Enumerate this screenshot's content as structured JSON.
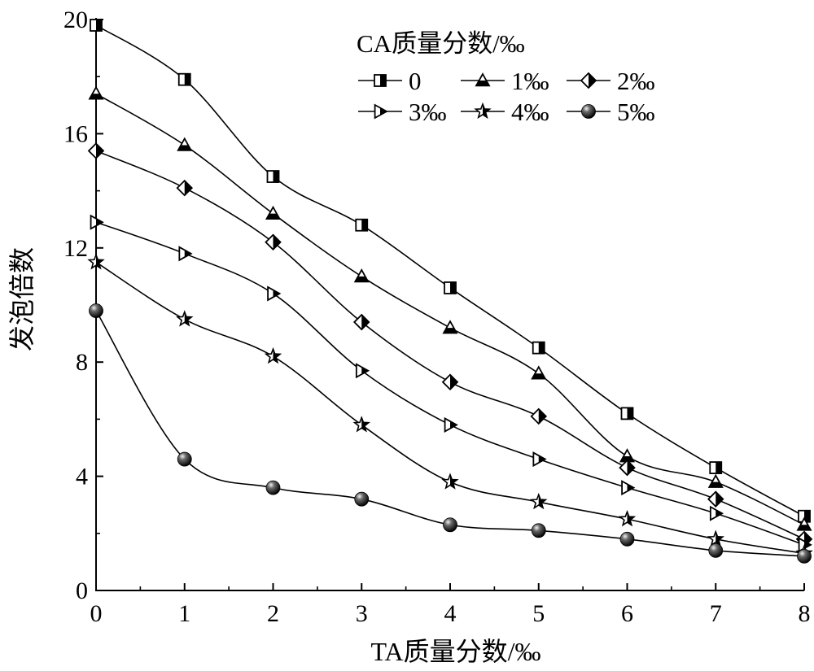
{
  "chart_data": {
    "type": "line",
    "xlabel": "TA质量分数/‰",
    "ylabel": "发泡倍数",
    "x": [
      0,
      1,
      2,
      3,
      4,
      5,
      6,
      7,
      8
    ],
    "xlim": [
      0,
      8
    ],
    "ylim": [
      0,
      20
    ],
    "xticks": [
      "0",
      "1",
      "2",
      "3",
      "4",
      "5",
      "6",
      "7",
      "8"
    ],
    "yticks": [
      "0",
      "4",
      "8",
      "12",
      "16",
      "20"
    ],
    "grid": false,
    "legend": {
      "title": "CA质量分数/‰",
      "placement": "top-right"
    },
    "series": [
      {
        "name": "0",
        "marker": "half-square",
        "values": [
          19.8,
          17.9,
          14.5,
          12.8,
          10.6,
          8.5,
          6.2,
          4.3,
          2.6
        ]
      },
      {
        "name": "1‰",
        "marker": "half-triangle",
        "values": [
          17.4,
          15.6,
          13.2,
          11.0,
          9.2,
          7.6,
          4.7,
          3.8,
          2.3
        ]
      },
      {
        "name": "2‰",
        "marker": "half-diamond",
        "values": [
          15.4,
          14.1,
          12.2,
          9.4,
          7.3,
          6.1,
          4.3,
          3.2,
          1.8
        ]
      },
      {
        "name": "3‰",
        "marker": "half-right-triangle",
        "values": [
          12.9,
          11.8,
          10.4,
          7.7,
          5.8,
          4.6,
          3.6,
          2.7,
          1.6
        ]
      },
      {
        "name": "4‰",
        "marker": "star",
        "values": [
          11.5,
          9.5,
          8.2,
          5.8,
          3.8,
          3.1,
          2.5,
          1.8,
          1.3
        ]
      },
      {
        "name": "5‰",
        "marker": "sphere",
        "values": [
          9.8,
          4.6,
          3.6,
          3.2,
          2.3,
          2.1,
          1.8,
          1.4,
          1.2
        ]
      }
    ]
  }
}
